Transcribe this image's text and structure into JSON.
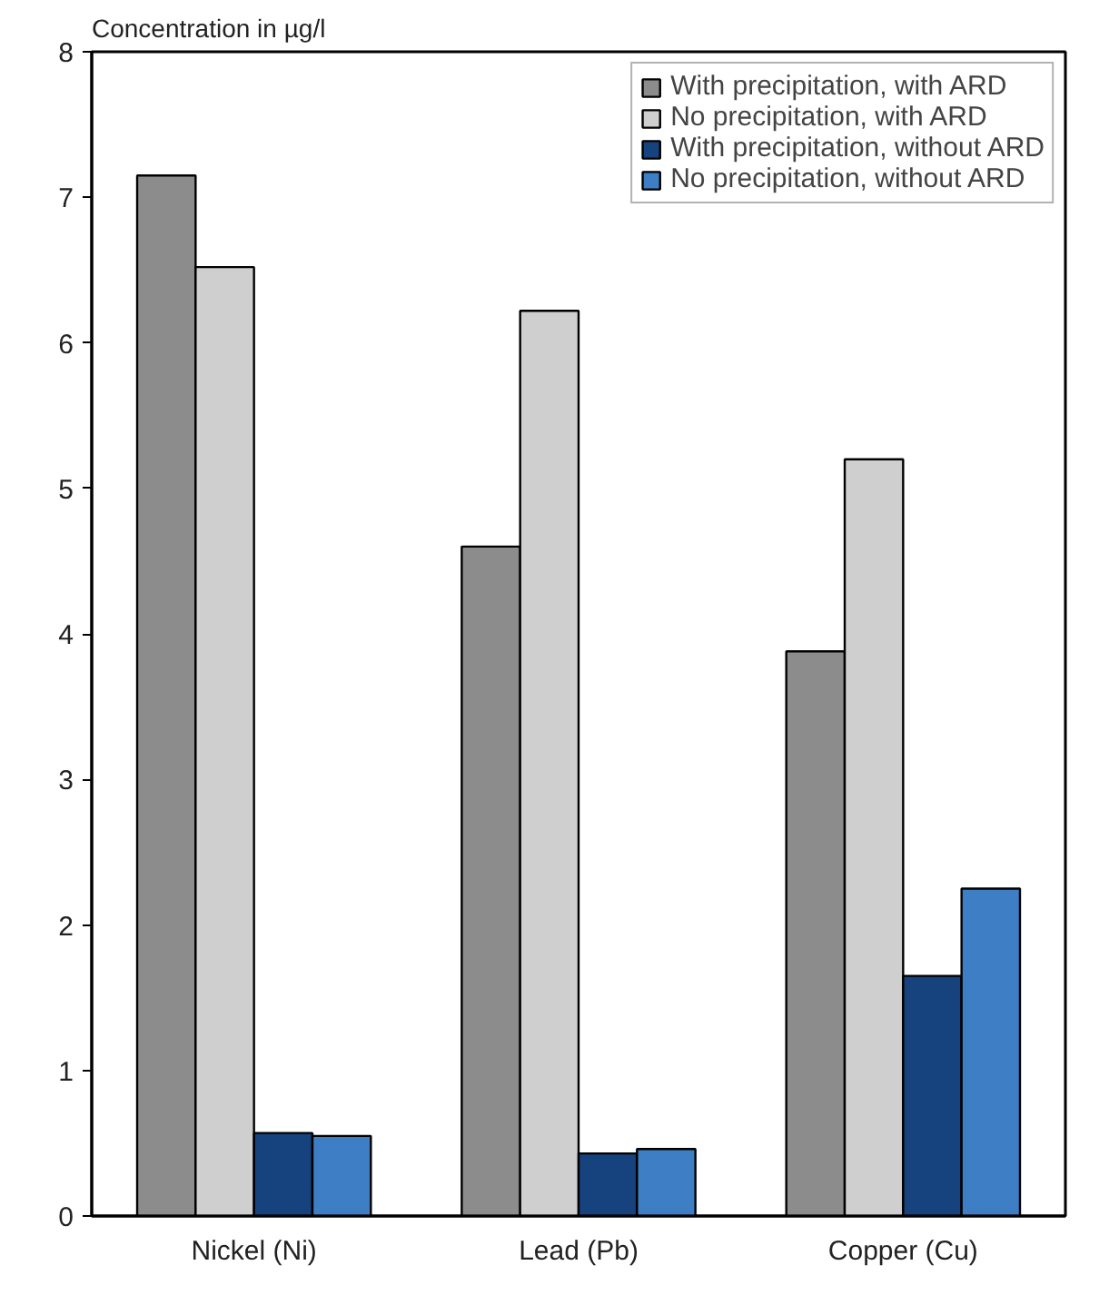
{
  "chart_data": {
    "type": "bar",
    "ylabel": "Concentration in µg/l",
    "categories": [
      "Nickel (Ni)",
      "Lead (Pb)",
      "Copper (Cu)"
    ],
    "series": [
      {
        "name": "With precipitation, with ARD",
        "color": "#8c8c8c",
        "values": [
          7.15,
          4.6,
          3.88
        ]
      },
      {
        "name": "No precipitation, with ARD",
        "color": "#cfcfcf",
        "values": [
          6.52,
          6.22,
          5.2
        ]
      },
      {
        "name": "With precipitation, without ARD",
        "color": "#16427e",
        "values": [
          0.57,
          0.43,
          1.65
        ]
      },
      {
        "name": "No precipitation, without ARD",
        "color": "#3d7ec4",
        "values": [
          0.55,
          0.46,
          2.25
        ]
      }
    ],
    "ylim": [
      0,
      8
    ],
    "yticks": [
      0,
      1,
      2,
      3,
      4,
      5,
      6,
      7,
      8
    ],
    "grid": false,
    "legend": "top right"
  }
}
